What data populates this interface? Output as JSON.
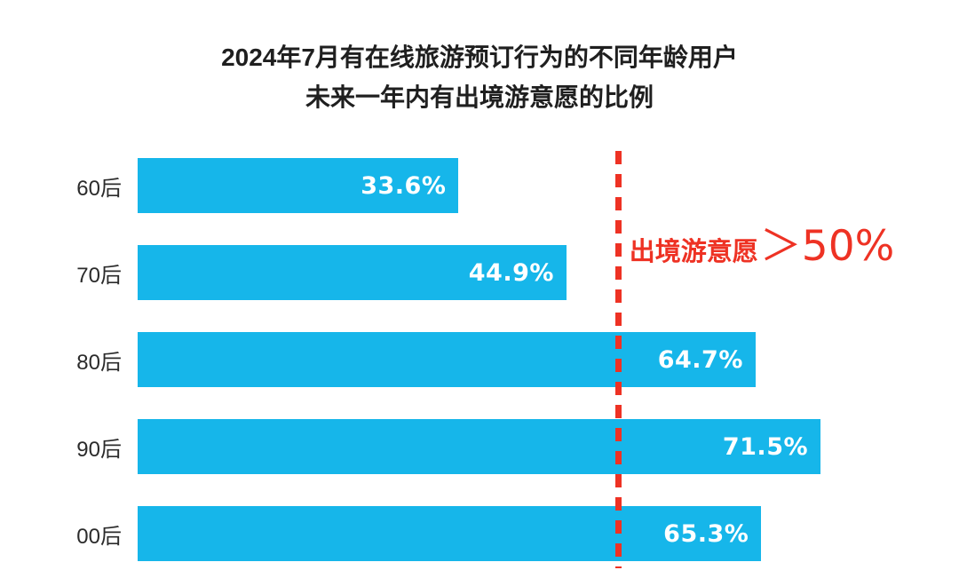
{
  "title": {
    "line1": "2024年7月有在线旅游预订行为的不同年龄用户",
    "line2": "未来一年内有出境游意愿的比例"
  },
  "chart_data": {
    "type": "bar",
    "orientation": "horizontal",
    "title": "2024年7月有在线旅游预订行为的不同年龄用户未来一年内有出境游意愿的比例",
    "categories": [
      "60后",
      "70后",
      "80后",
      "90后",
      "00后"
    ],
    "values": [
      33.6,
      44.9,
      64.7,
      71.5,
      65.3
    ],
    "value_labels": [
      "33.6%",
      "44.9%",
      "64.7%",
      "71.5%",
      "65.3%"
    ],
    "xlim": [
      0,
      86
    ],
    "grid": false,
    "legend": false,
    "bar_color": "#16b6ea",
    "value_label_color": "#ffffff",
    "annotation": {
      "text_prefix": "出境游意愿",
      "text_value": "＞50%",
      "threshold": 50,
      "color": "#ee3224"
    }
  }
}
